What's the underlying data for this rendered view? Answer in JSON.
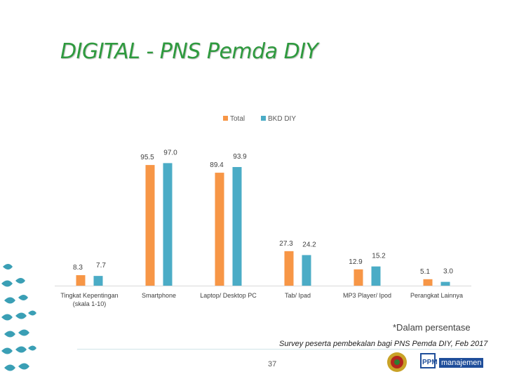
{
  "page": {
    "title": "DIGITAL - PNS Pemda DIY",
    "note": "*Dalam persentase",
    "survey_source": "Survey peserta pembekalan bagi PNS Pemda DIY, Feb 2017",
    "page_number": "37",
    "logo_text": "manajemen",
    "logo_abbrev": "PPM"
  },
  "colors": {
    "title": "#2e9a3e",
    "total": "#f79646",
    "bkd": "#4bacc6",
    "decor": "#3a9fb5"
  },
  "chart_data": {
    "type": "bar",
    "title": "",
    "xlabel": "",
    "ylabel": "",
    "categories": [
      "Tingkat Kepentingan (skala 1-10)",
      "Smartphone",
      "Laptop/ Desktop PC",
      "Tab/ Ipad",
      "MP3 Player/ Ipod",
      "Perangkat Lainnya"
    ],
    "series": [
      {
        "name": "Total",
        "values": [
          8.3,
          95.5,
          89.4,
          27.3,
          12.9,
          5.1
        ],
        "labels": [
          "8.3",
          "95.5",
          "89.4",
          "27.3",
          "12.9",
          "5.1"
        ]
      },
      {
        "name": "BKD DIY",
        "values": [
          7.7,
          97.0,
          93.9,
          24.2,
          15.2,
          3.0
        ],
        "labels": [
          "7.7",
          "97.0",
          "93.9",
          "24.2",
          "15.2",
          "3.0"
        ]
      }
    ],
    "ylim": [
      0,
      100
    ],
    "grid": false,
    "legend_position": "top-center"
  }
}
